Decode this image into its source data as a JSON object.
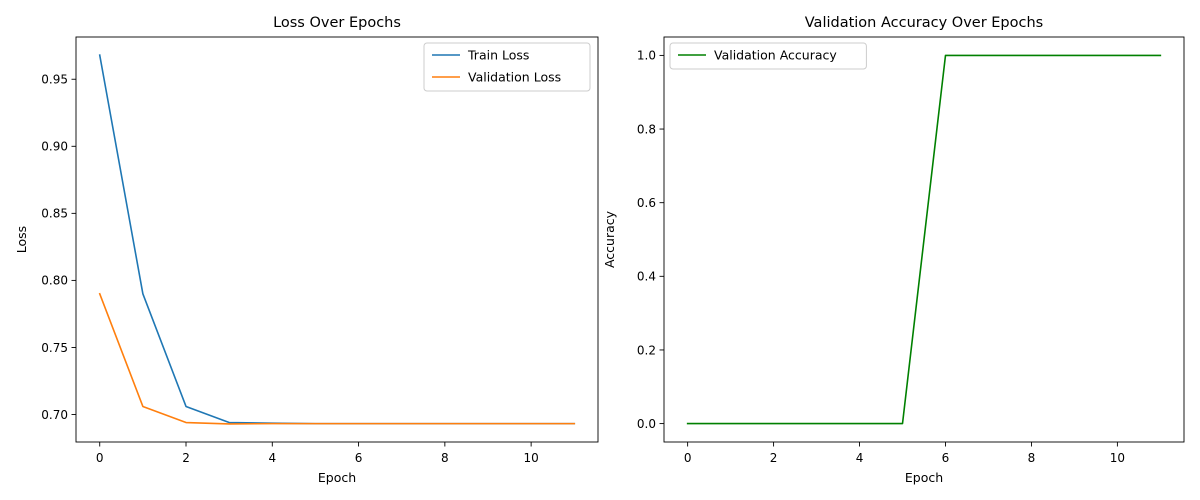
{
  "chart_data": [
    {
      "type": "line",
      "title": "Loss Over Epochs",
      "xlabel": "Epoch",
      "ylabel": "Loss",
      "xlim": [
        -0.55,
        11.55
      ],
      "ylim": [
        0.6795,
        0.9815
      ],
      "xticks": [
        0,
        2,
        4,
        6,
        8,
        10
      ],
      "xtick_labels": [
        "0",
        "2",
        "4",
        "6",
        "8",
        "10"
      ],
      "yticks": [
        0.7,
        0.75,
        0.8,
        0.85,
        0.9,
        0.95
      ],
      "ytick_labels": [
        "0.70",
        "0.75",
        "0.80",
        "0.85",
        "0.90",
        "0.95"
      ],
      "grid": false,
      "legend_position": "top-right",
      "x": [
        0,
        1,
        2,
        3,
        4,
        5,
        6,
        7,
        8,
        9,
        10,
        11
      ],
      "series": [
        {
          "name": "Train Loss",
          "color": "#1f77b4",
          "values": [
            0.968,
            0.79,
            0.706,
            0.694,
            0.6935,
            0.6932,
            0.6932,
            0.6932,
            0.6932,
            0.6932,
            0.6932,
            0.6932
          ]
        },
        {
          "name": "Validation Loss",
          "color": "#ff7f0e",
          "values": [
            0.79,
            0.706,
            0.694,
            0.693,
            0.6932,
            0.6932,
            0.6932,
            0.6932,
            0.6932,
            0.6932,
            0.6932,
            0.6932
          ]
        }
      ]
    },
    {
      "type": "line",
      "title": "Validation Accuracy Over Epochs",
      "xlabel": "Epoch",
      "ylabel": "Accuracy",
      "xlim": [
        -0.55,
        11.55
      ],
      "ylim": [
        -0.05,
        1.05
      ],
      "xticks": [
        0,
        2,
        4,
        6,
        8,
        10
      ],
      "xtick_labels": [
        "0",
        "2",
        "4",
        "6",
        "8",
        "10"
      ],
      "yticks": [
        0.0,
        0.2,
        0.4,
        0.6,
        0.8,
        1.0
      ],
      "ytick_labels": [
        "0.0",
        "0.2",
        "0.4",
        "0.6",
        "0.8",
        "1.0"
      ],
      "grid": false,
      "legend_position": "top-left",
      "x": [
        0,
        1,
        2,
        3,
        4,
        5,
        6,
        7,
        8,
        9,
        10,
        11
      ],
      "series": [
        {
          "name": "Validation Accuracy",
          "color": "#008000",
          "values": [
            0,
            0,
            0,
            0,
            0,
            0,
            1,
            1,
            1,
            1,
            1,
            1
          ]
        }
      ]
    }
  ]
}
